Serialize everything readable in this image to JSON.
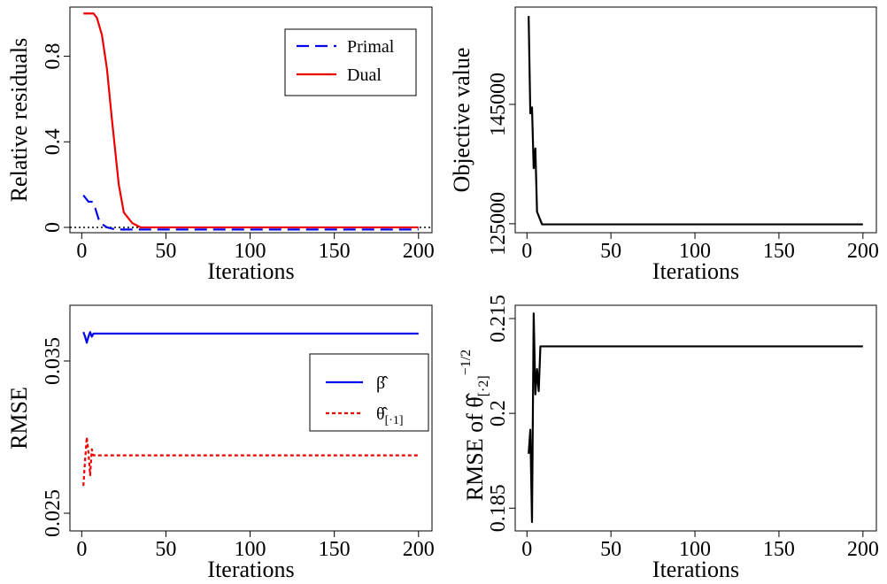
{
  "chart_data": [
    {
      "type": "line",
      "ylabel": "Relative residuals",
      "xlabel": "Iterations",
      "xlim": [
        -7,
        208
      ],
      "xticks": [
        0,
        50,
        100,
        150,
        200
      ],
      "ylim": [
        -0.025,
        1.03
      ],
      "yticks": [
        0.0,
        0.4,
        0.8
      ],
      "hline": 0,
      "legend": "top-right",
      "series": [
        {
          "name": "Primal",
          "color": "#0000ee",
          "style": "dashed",
          "x": [
            1,
            2,
            4,
            6,
            8,
            10,
            12,
            15,
            20,
            200
          ],
          "values": [
            0.15,
            0.14,
            0.12,
            0.12,
            0.09,
            0.04,
            0.015,
            0.0,
            -0.01,
            -0.01
          ]
        },
        {
          "name": "Dual",
          "color": "#ee0000",
          "style": "solid",
          "x": [
            1,
            4,
            7,
            9,
            12,
            15,
            18,
            22,
            25,
            30,
            35,
            200
          ],
          "values": [
            1.0,
            1.0,
            1.0,
            0.98,
            0.9,
            0.74,
            0.5,
            0.2,
            0.07,
            0.02,
            0.0,
            0.0
          ]
        }
      ]
    },
    {
      "type": "line",
      "ylabel": "Objective value",
      "xlabel": "Iterations",
      "xlim": [
        -7,
        208
      ],
      "xticks": [
        0,
        50,
        100,
        150,
        200
      ],
      "ylim": [
        123500,
        161300
      ],
      "yticks": [
        125000,
        145000
      ],
      "series": [
        {
          "color": "#000000",
          "style": "solid",
          "x": [
            1,
            2,
            3,
            4,
            5,
            6,
            9,
            200
          ],
          "values": [
            159800,
            143500,
            144500,
            134300,
            137600,
            127000,
            124900,
            124900
          ]
        }
      ]
    },
    {
      "type": "line",
      "ylabel": "RMSE",
      "xlabel": "Iterations",
      "xlim": [
        -7,
        208
      ],
      "xticks": [
        0,
        50,
        100,
        150,
        200
      ],
      "ylim": [
        0.02384,
        0.03866
      ],
      "yticks": [
        0.025,
        0.035
      ],
      "legend": "right",
      "series": [
        {
          "name": "β̂",
          "color": "#0000ee",
          "style": "solid",
          "x": [
            1,
            2,
            3,
            4,
            5,
            6,
            7,
            8,
            200
          ],
          "values": [
            0.0369,
            0.0366,
            0.0362,
            0.0366,
            0.0369,
            0.0366,
            0.0368,
            0.0368,
            0.0368
          ]
        },
        {
          "name": "θ̂",
          "name_subscript": "[·1]",
          "color": "#ee0000",
          "style": "dotted",
          "x": [
            1,
            2,
            3,
            4,
            5,
            6,
            7,
            8,
            200
          ],
          "values": [
            0.0268,
            0.0285,
            0.03,
            0.029,
            0.0275,
            0.0292,
            0.0288,
            0.0288,
            0.0288
          ]
        }
      ]
    },
    {
      "type": "line",
      "ylabel": {
        "text": "RMSE of θ̂",
        "subscript": "[·2]",
        "superscript": "−1/2"
      },
      "xlabel": "Iterations",
      "xlim": [
        -7,
        208
      ],
      "xticks": [
        0,
        50,
        100,
        150,
        200
      ],
      "ylim": [
        0.1814,
        0.2171
      ],
      "yticks": [
        0.185,
        0.2,
        {
          "value": 0.215,
          "label": "0.215"
        }
      ],
      "series": [
        {
          "color": "#000000",
          "style": "solid",
          "x": [
            1,
            2,
            3,
            4,
            5,
            6,
            7,
            8,
            200
          ],
          "values": [
            0.1936,
            0.1974,
            0.1828,
            0.2158,
            0.203,
            0.207,
            0.2035,
            0.2106,
            0.2106
          ]
        }
      ]
    }
  ]
}
